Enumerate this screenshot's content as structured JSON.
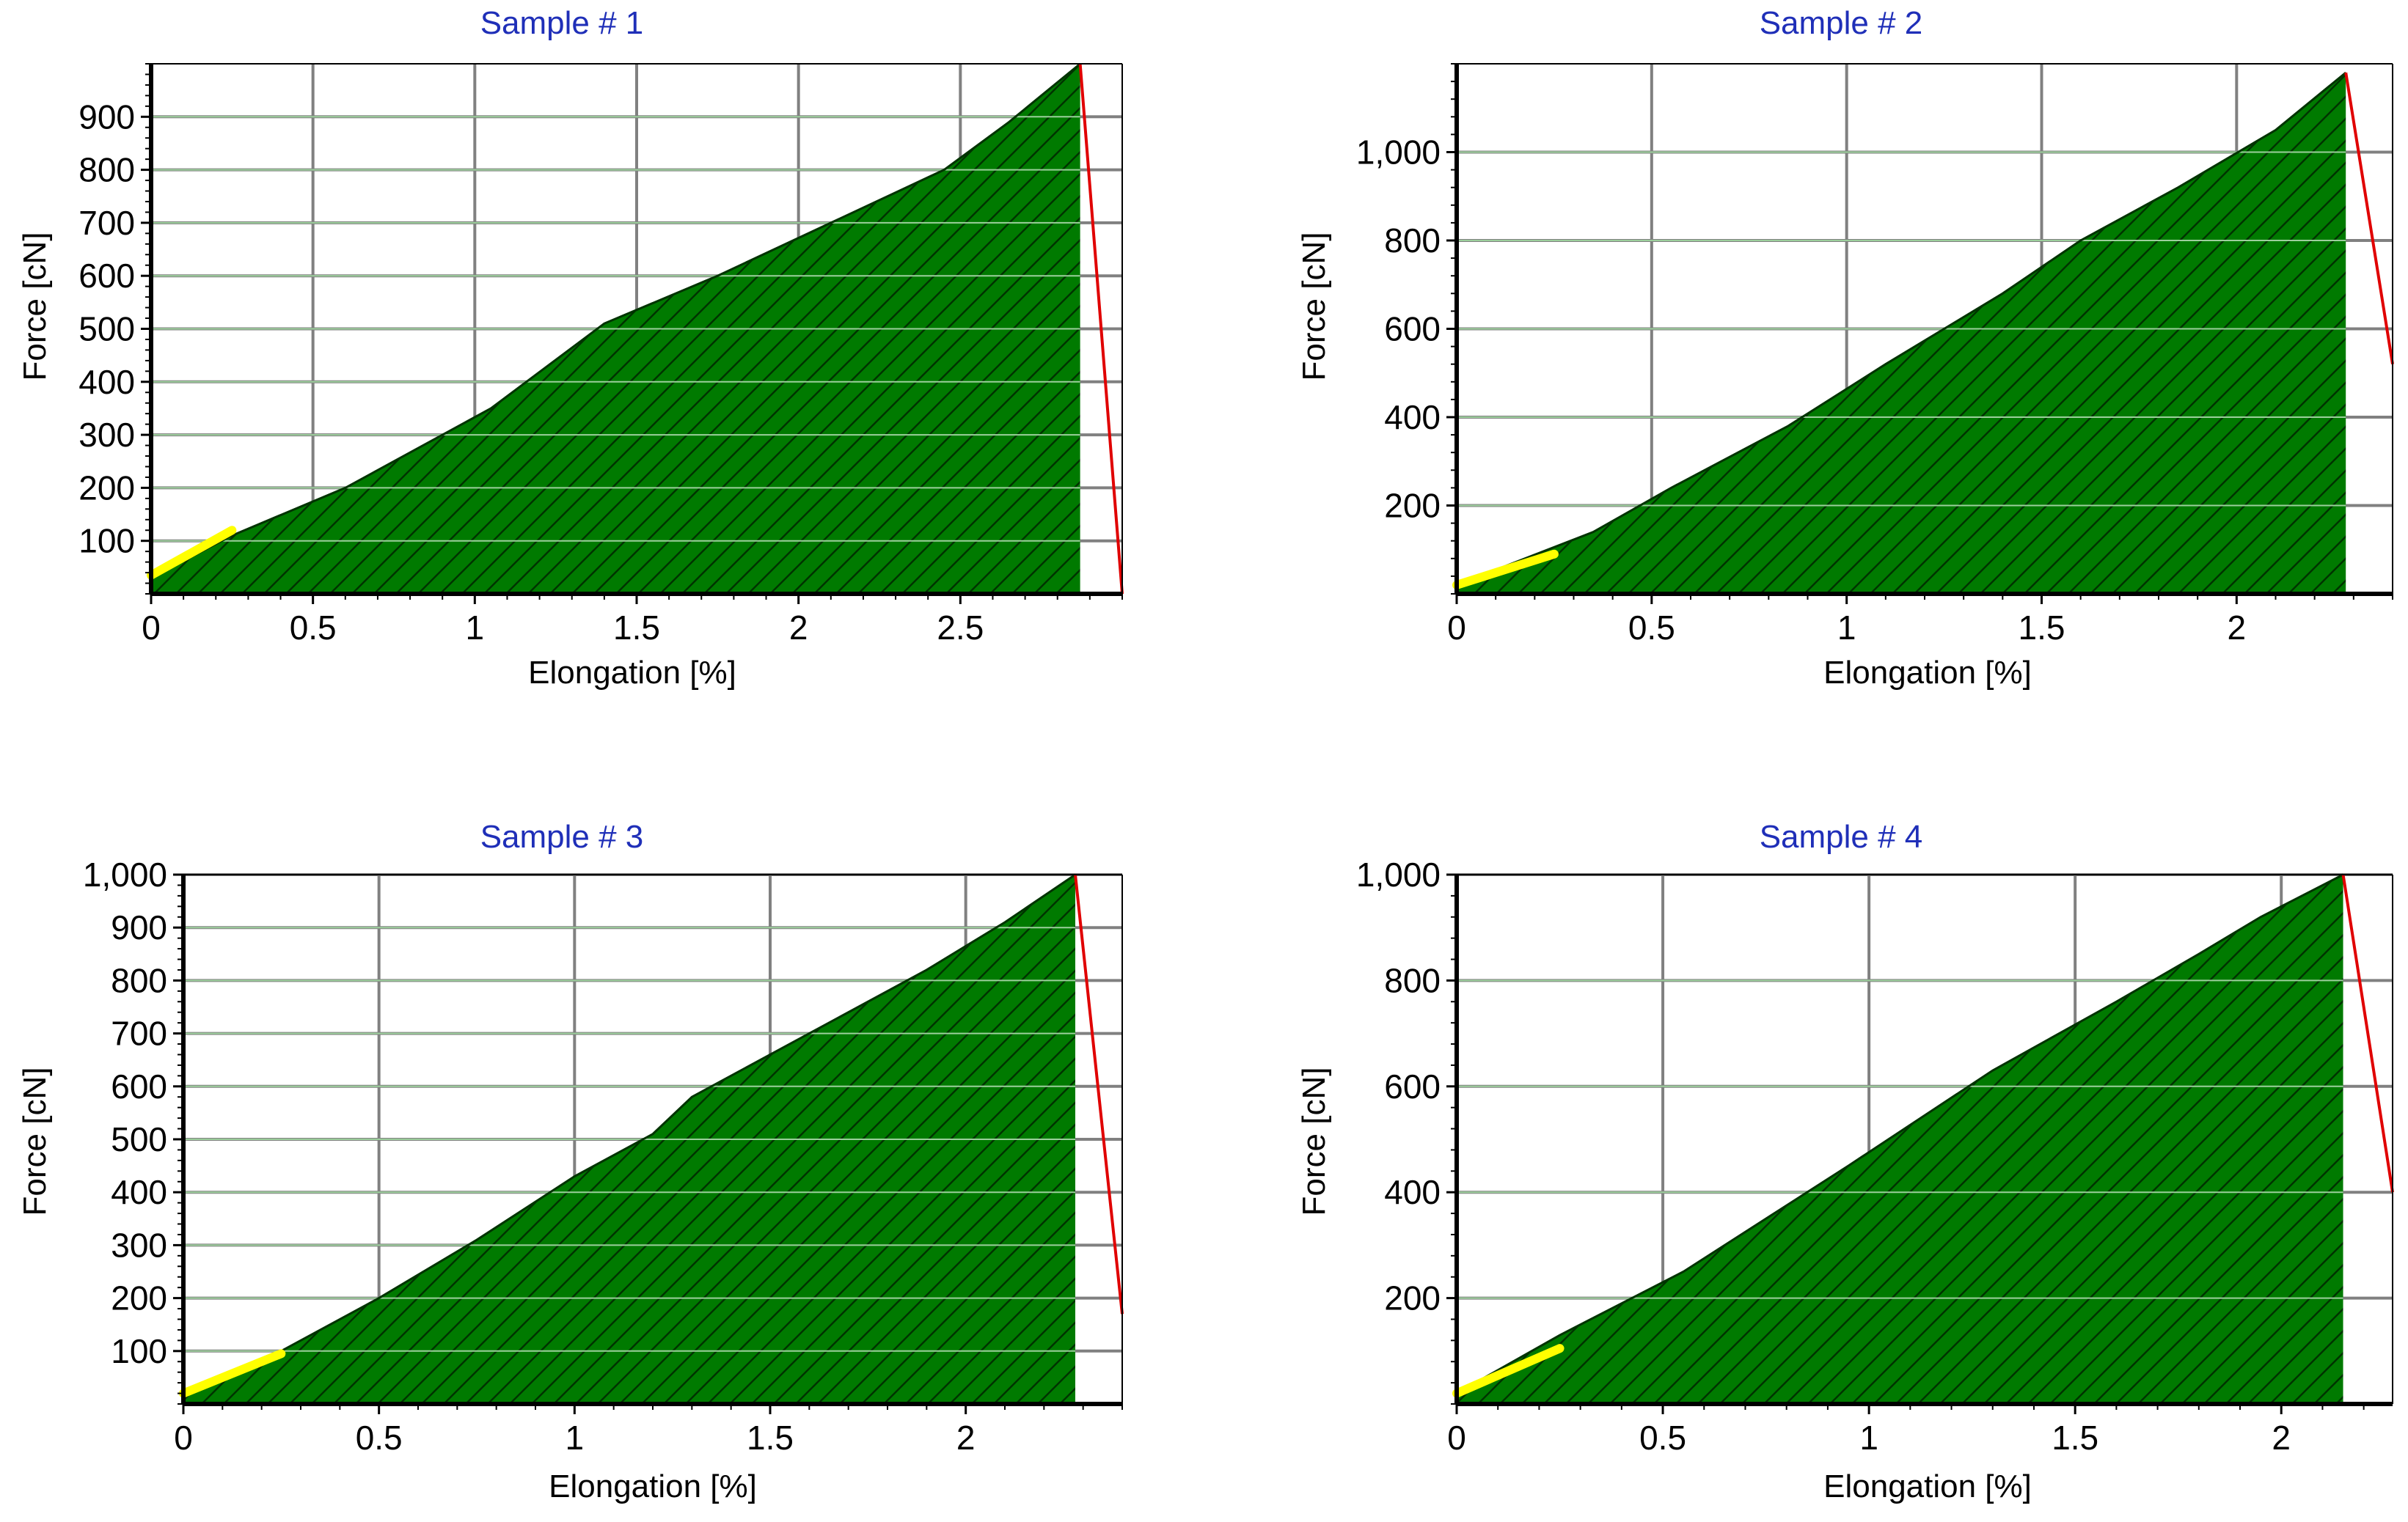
{
  "colors": {
    "fill": "#007a00",
    "hatch": "#003300",
    "grid": "#808080",
    "title": "#1f2fb8",
    "drop_line": "#e00000",
    "yellow_line": "#ffff00",
    "axis": "#000000"
  },
  "chart_data": [
    {
      "type": "area",
      "title": "Sample # 1",
      "xlabel": "Elongation [%]",
      "ylabel": "Force [cN]",
      "xlim": [
        0,
        3.0
      ],
      "ylim": [
        0,
        1000
      ],
      "xticks": [
        0,
        0.5,
        1,
        1.5,
        2,
        2.5
      ],
      "xtick_labels": [
        "0",
        "0.5",
        "1",
        "1.5",
        "2",
        "2.5"
      ],
      "yticks": [
        100,
        200,
        300,
        400,
        500,
        600,
        700,
        800,
        900
      ],
      "ytick_labels": [
        "100",
        "200",
        "300",
        "400",
        "500",
        "600",
        "700",
        "800",
        "900"
      ],
      "grid": true,
      "series": [
        {
          "x": [
            0,
            0.25,
            0.6,
            1.05,
            1.4,
            1.75,
            2.1,
            2.45,
            2.65,
            2.87
          ],
          "y": [
            30,
            110,
            200,
            350,
            510,
            600,
            700,
            800,
            890,
            1000
          ]
        }
      ],
      "break": {
        "x": [
          2.87,
          3.0
        ],
        "y": [
          1000,
          0
        ]
      },
      "initial_segment": {
        "x": [
          0,
          0.25
        ],
        "y": [
          35,
          120
        ]
      }
    },
    {
      "type": "area",
      "title": "Sample # 2",
      "xlabel": "Elongation [%]",
      "ylabel": "Force [cN]",
      "xlim": [
        0,
        2.4
      ],
      "ylim": [
        0,
        1200
      ],
      "xticks": [
        0,
        0.5,
        1,
        1.5,
        2
      ],
      "xtick_labels": [
        "0",
        "0.5",
        "1",
        "1.5",
        "2"
      ],
      "yticks": [
        200,
        400,
        600,
        800,
        1000
      ],
      "ytick_labels": [
        "200",
        "400",
        "600",
        "800",
        "1,000"
      ],
      "grid": true,
      "series": [
        {
          "x": [
            0,
            0.35,
            0.55,
            0.85,
            1.1,
            1.4,
            1.6,
            1.85,
            2.1,
            2.28
          ],
          "y": [
            20,
            140,
            240,
            380,
            520,
            680,
            800,
            920,
            1050,
            1180
          ]
        }
      ],
      "break": {
        "x": [
          2.28,
          2.4
        ],
        "y": [
          1180,
          520
        ]
      },
      "initial_segment": {
        "x": [
          0,
          0.25
        ],
        "y": [
          20,
          90
        ]
      }
    },
    {
      "type": "area",
      "title": "Sample # 3",
      "xlabel": "Elongation [%]",
      "ylabel": "Force [cN]",
      "xlim": [
        0,
        2.4
      ],
      "ylim": [
        0,
        1000
      ],
      "xticks": [
        0,
        0.5,
        1,
        1.5,
        2
      ],
      "xtick_labels": [
        "0",
        "0.5",
        "1",
        "1.5",
        "2"
      ],
      "yticks": [
        100,
        200,
        300,
        400,
        500,
        600,
        700,
        800,
        900,
        1000
      ],
      "ytick_labels": [
        "100",
        "200",
        "300",
        "400",
        "500",
        "600",
        "700",
        "800",
        "900",
        "1,000"
      ],
      "grid": true,
      "series": [
        {
          "x": [
            0,
            0.25,
            0.5,
            0.75,
            1.0,
            1.2,
            1.3,
            1.6,
            1.9,
            2.1,
            2.28
          ],
          "y": [
            20,
            100,
            200,
            310,
            430,
            510,
            580,
            700,
            820,
            910,
            1000
          ]
        }
      ],
      "break": {
        "x": [
          2.28,
          2.4
        ],
        "y": [
          1000,
          170
        ]
      },
      "initial_segment": {
        "x": [
          0,
          0.25
        ],
        "y": [
          20,
          95
        ]
      }
    },
    {
      "type": "area",
      "title": "Sample # 4",
      "xlabel": "Elongation [%]",
      "ylabel": "Force [cN]",
      "xlim": [
        0,
        2.27
      ],
      "ylim": [
        0,
        1000
      ],
      "xticks": [
        0,
        0.5,
        1,
        1.5,
        2
      ],
      "xtick_labels": [
        "0",
        "0.5",
        "1",
        "1.5",
        "2"
      ],
      "yticks": [
        200,
        400,
        600,
        800,
        1000
      ],
      "ytick_labels": [
        "200",
        "400",
        "600",
        "800",
        "1,000"
      ],
      "grid": true,
      "series": [
        {
          "x": [
            0,
            0.25,
            0.55,
            0.95,
            1.3,
            1.6,
            1.8,
            1.95,
            2.15
          ],
          "y": [
            20,
            130,
            250,
            450,
            630,
            760,
            850,
            920,
            1000
          ]
        }
      ],
      "break": {
        "x": [
          2.15,
          2.27
        ],
        "y": [
          1000,
          400
        ]
      },
      "initial_segment": {
        "x": [
          0,
          0.25
        ],
        "y": [
          20,
          105
        ]
      }
    }
  ]
}
